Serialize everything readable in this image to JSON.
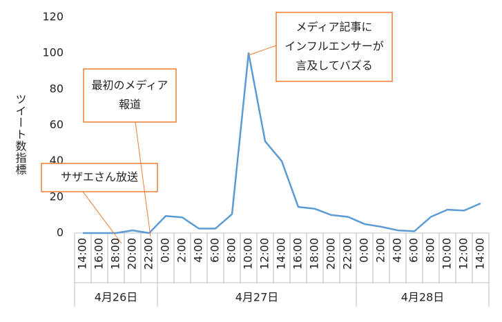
{
  "chart_data": {
    "type": "line",
    "y_label": "ツイート数指標",
    "groups": [
      {
        "label": "4月26日",
        "categories": [
          "14:00",
          "16:00",
          "18:00",
          "20:00",
          "22:00"
        ]
      },
      {
        "label": "4月27日",
        "categories": [
          "0:00",
          "2:00",
          "4:00",
          "6:00",
          "8:00",
          "10:00",
          "12:00",
          "14:00",
          "16:00",
          "18:00",
          "20:00",
          "22:00"
        ]
      },
      {
        "label": "4月28日",
        "categories": [
          "0:00",
          "2:00",
          "4:00",
          "6:00",
          "8:00",
          "10:00",
          "12:00",
          "14:00"
        ]
      }
    ],
    "values": [
      0,
      0,
      0,
      1.5,
      0,
      9.5,
      8.7,
      2.5,
      2.5,
      10.5,
      100,
      51,
      40,
      14.5,
      13.5,
      10,
      9,
      5,
      3.5,
      1.5,
      1,
      9,
      13,
      12.5,
      16.5
    ],
    "color": "#5b9bd5",
    "ylim": [
      0,
      120
    ],
    "yticks": [
      0,
      20,
      40,
      60,
      80,
      100,
      120
    ],
    "annotations": [
      {
        "lines": [
          "サザエさん放送"
        ]
      },
      {
        "lines": [
          "最初のメディア",
          "報道"
        ]
      },
      {
        "lines": [
          "メディア記事に",
          "インフルエンサーが",
          "言及してバズる"
        ]
      }
    ]
  }
}
